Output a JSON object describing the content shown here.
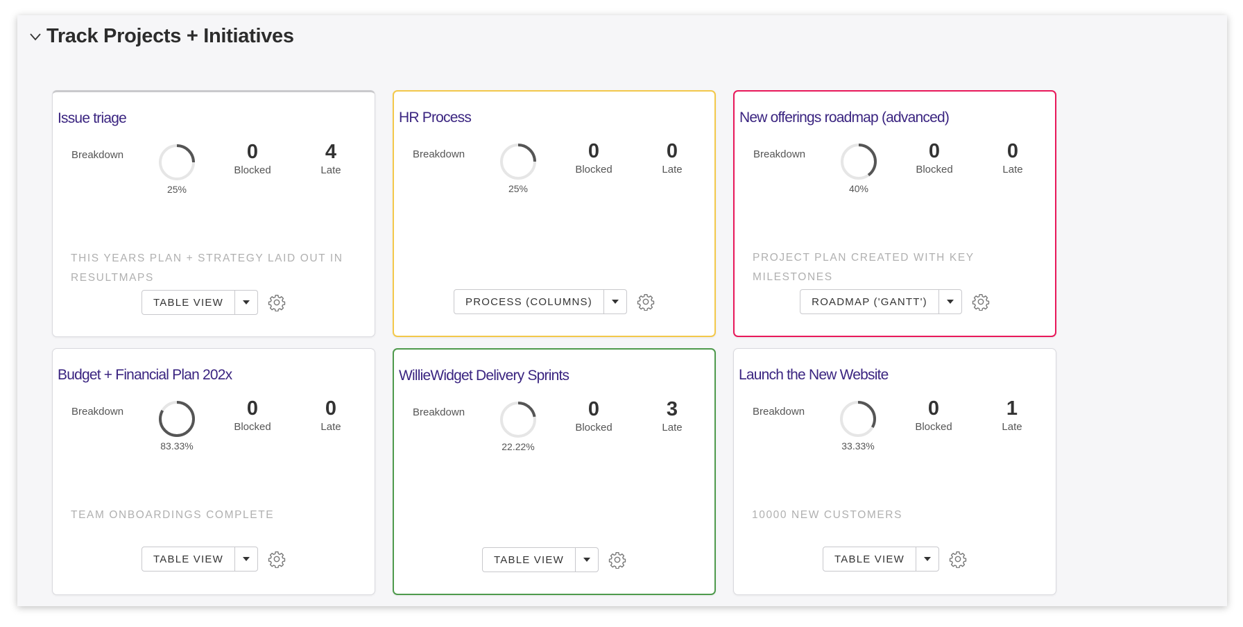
{
  "section": {
    "title": "Track Projects + Initiatives",
    "collapse_icon": "chevron-down-icon"
  },
  "labels": {
    "breakdown": "Breakdown",
    "blocked": "Blocked",
    "late": "Late"
  },
  "colors": {
    "title": "#3a2480",
    "yellow_border": "#f3c84a",
    "red_border": "#e8185a",
    "green_border": "#4e9a4c",
    "donut_track": "#e6e6e6",
    "donut_progress": "#555555"
  },
  "cards": [
    {
      "title": "Issue triage",
      "border": "top-grey",
      "progress": 25,
      "progress_label": "25%",
      "blocked": "0",
      "late": "4",
      "milestone": "THIS YEARS PLAN + STRATEGY LAID OUT IN RESULTMAPS",
      "view_label": "TABLE VIEW"
    },
    {
      "title": "HR Process",
      "border": "full-yellow",
      "progress": 25,
      "progress_label": "25%",
      "blocked": "0",
      "late": "0",
      "milestone": "",
      "view_label": "PROCESS (COLUMNS)"
    },
    {
      "title": "New offerings roadmap (advanced)",
      "border": "full-red",
      "progress": 40,
      "progress_label": "40%",
      "blocked": "0",
      "late": "0",
      "milestone": "PROJECT PLAN CREATED WITH KEY MILESTONES",
      "view_label": "ROADMAP ('GANTT')"
    },
    {
      "title": "Budget + Financial Plan 202x",
      "border": "plain",
      "progress": 83.33,
      "progress_label": "83.33%",
      "blocked": "0",
      "late": "0",
      "milestone": "TEAM ONBOARDINGS COMPLETE",
      "view_label": "TABLE VIEW"
    },
    {
      "title": "WillieWidget Delivery Sprints",
      "border": "full-green",
      "progress": 22.22,
      "progress_label": "22.22%",
      "blocked": "0",
      "late": "3",
      "milestone": "",
      "view_label": "TABLE VIEW"
    },
    {
      "title": "Launch the New Website",
      "border": "plain",
      "progress": 33.33,
      "progress_label": "33.33%",
      "blocked": "0",
      "late": "1",
      "milestone": "10000 NEW CUSTOMERS",
      "view_label": "TABLE VIEW"
    }
  ]
}
